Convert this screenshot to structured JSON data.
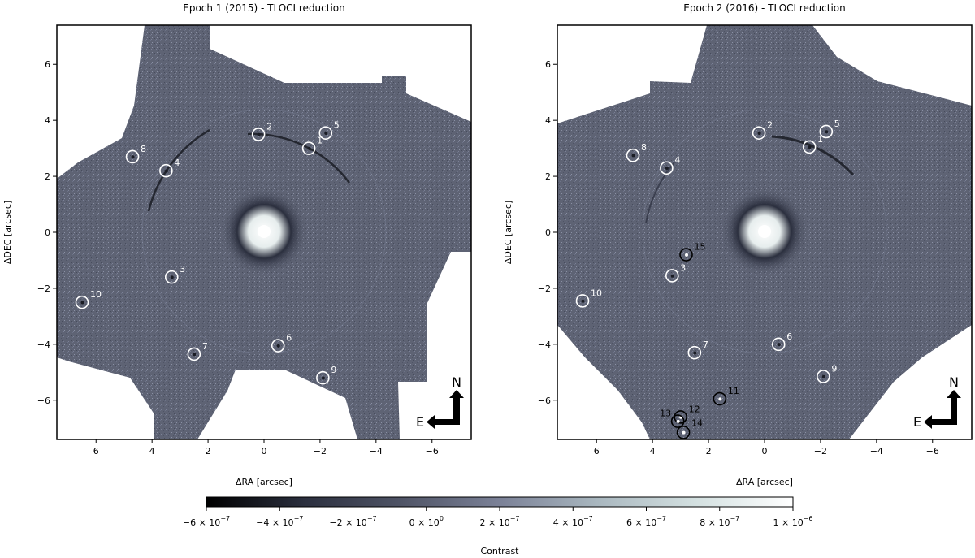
{
  "figure": {
    "colors": {
      "background_gray": "#5e6374",
      "frame": "#000000",
      "marker_white": "#ffffff",
      "marker_black": "#000000",
      "cmap": [
        "#000000",
        "#2b2f3e",
        "#4f5466",
        "#7b8197",
        "#a9b7bf",
        "#d3e0e0",
        "#ffffff"
      ]
    },
    "panels": [
      {
        "title": "Epoch 1 (2015) - TLOCI reduction",
        "xlabel": "ΔRA [arcsec]",
        "ylabel": "ΔDEC [arcsec]",
        "xticks": [
          "6",
          "4",
          "2",
          "0",
          "−2",
          "−4",
          "−6"
        ],
        "yticks": [
          "6",
          "4",
          "2",
          "0",
          "−2",
          "−4",
          "−6"
        ],
        "compass": {
          "north": "N",
          "east": "E"
        },
        "sources": [
          {
            "id": "1",
            "ra": -1.6,
            "dec": 3.0,
            "color": "white"
          },
          {
            "id": "2",
            "ra": 0.2,
            "dec": 3.5,
            "color": "white"
          },
          {
            "id": "3",
            "ra": 3.3,
            "dec": -1.6,
            "color": "white"
          },
          {
            "id": "4",
            "ra": 3.5,
            "dec": 2.2,
            "color": "white"
          },
          {
            "id": "5",
            "ra": -2.2,
            "dec": 3.55,
            "color": "white"
          },
          {
            "id": "6",
            "ra": -0.5,
            "dec": -4.05,
            "color": "white"
          },
          {
            "id": "7",
            "ra": 2.5,
            "dec": -4.35,
            "color": "white"
          },
          {
            "id": "8",
            "ra": 4.7,
            "dec": 2.7,
            "color": "white"
          },
          {
            "id": "9",
            "ra": -2.1,
            "dec": -5.2,
            "color": "white"
          },
          {
            "id": "10",
            "ra": 6.5,
            "dec": -2.5,
            "color": "white"
          }
        ]
      },
      {
        "title": "Epoch 2 (2016) - TLOCI reduction",
        "xlabel": "ΔRA [arcsec]",
        "ylabel": "ΔDEC [arcsec]",
        "xticks": [
          "6",
          "4",
          "2",
          "0",
          "−2",
          "−4",
          "−6"
        ],
        "yticks": [
          "6",
          "4",
          "2",
          "0",
          "−2",
          "−4",
          "−6"
        ],
        "compass": {
          "north": "N",
          "east": "E"
        },
        "sources": [
          {
            "id": "1",
            "ra": -1.6,
            "dec": 3.05,
            "color": "white"
          },
          {
            "id": "2",
            "ra": 0.2,
            "dec": 3.55,
            "color": "white"
          },
          {
            "id": "3",
            "ra": 3.3,
            "dec": -1.55,
            "color": "white"
          },
          {
            "id": "4",
            "ra": 3.5,
            "dec": 2.3,
            "color": "white"
          },
          {
            "id": "5",
            "ra": -2.2,
            "dec": 3.6,
            "color": "white"
          },
          {
            "id": "6",
            "ra": -0.5,
            "dec": -4.0,
            "color": "white"
          },
          {
            "id": "7",
            "ra": 2.5,
            "dec": -4.3,
            "color": "white"
          },
          {
            "id": "8",
            "ra": 4.7,
            "dec": 2.75,
            "color": "white"
          },
          {
            "id": "9",
            "ra": -2.1,
            "dec": -5.15,
            "color": "white"
          },
          {
            "id": "10",
            "ra": 6.5,
            "dec": -2.45,
            "color": "white"
          },
          {
            "id": "11",
            "ra": 1.6,
            "dec": -5.95,
            "color": "black"
          },
          {
            "id": "12",
            "ra": 3.0,
            "dec": -6.6,
            "color": "black"
          },
          {
            "id": "13",
            "ra": 3.1,
            "dec": -6.75,
            "color": "black"
          },
          {
            "id": "14",
            "ra": 2.9,
            "dec": -7.15,
            "color": "black"
          },
          {
            "id": "15",
            "ra": 2.8,
            "dec": -0.8,
            "color": "black"
          }
        ]
      }
    ],
    "colorbar": {
      "label": "Contrast",
      "range": [
        -6e-07,
        1e-06
      ],
      "tick_values": [
        -6e-07,
        -4e-07,
        -2e-07,
        0,
        2e-07,
        4e-07,
        6e-07,
        8e-07,
        1e-06
      ],
      "tick_labels": [
        {
          "mantissa": "−6 × 10",
          "exp": "−7"
        },
        {
          "mantissa": "−4 × 10",
          "exp": "−7"
        },
        {
          "mantissa": "−2 × 10",
          "exp": "−7"
        },
        {
          "mantissa": "0 × 10",
          "exp": "0"
        },
        {
          "mantissa": "2 × 10",
          "exp": "−7"
        },
        {
          "mantissa": "4 × 10",
          "exp": "−7"
        },
        {
          "mantissa": "6 × 10",
          "exp": "−7"
        },
        {
          "mantissa": "8 × 10",
          "exp": "−7"
        },
        {
          "mantissa": "1 × 10",
          "exp": "−6"
        }
      ]
    }
  }
}
